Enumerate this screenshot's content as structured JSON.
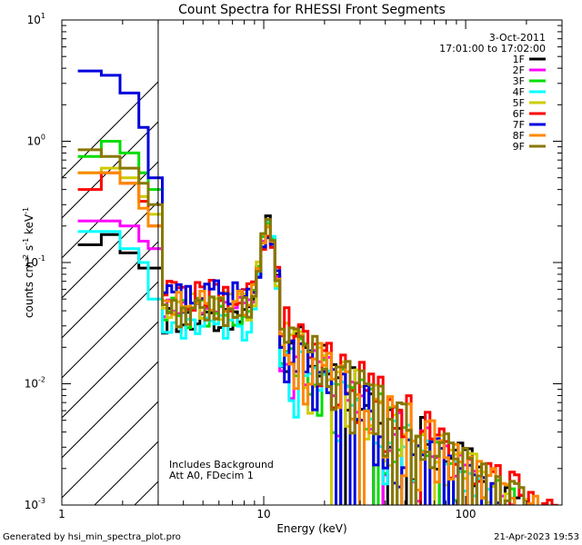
{
  "chart_data": {
    "type": "line",
    "title": "Count Spectra for RHESSI Front Segments",
    "xlabel": "Energy (keV)",
    "ylabel_main": "counts cm",
    "ylabel_exp1": "-2",
    "ylabel_s": " s",
    "ylabel_exp2": "-1",
    "ylabel_kev": " keV",
    "ylabel_exp3": "-1",
    "xscale": "log",
    "yscale": "log",
    "xlim": [
      1,
      300
    ],
    "ylim": [
      0.001,
      10
    ],
    "x_ticks": [
      {
        "value": 1,
        "label": "1"
      },
      {
        "value": 10,
        "label": "10"
      },
      {
        "value": 100,
        "label": "100"
      }
    ],
    "y_ticks": [
      {
        "value": 0.001,
        "base": "10",
        "exp": "-3"
      },
      {
        "value": 0.01,
        "base": "10",
        "exp": "-2"
      },
      {
        "value": 0.1,
        "base": "10",
        "exp": "-1"
      },
      {
        "value": 1,
        "base": "10",
        "exp": "0"
      },
      {
        "value": 10,
        "base": "10",
        "exp": "1"
      }
    ],
    "hatched_region_x": [
      1,
      3
    ],
    "date": "3-Oct-2011",
    "time_range": "17:01:00 to 17:02:00",
    "annotations": [
      "Includes Background",
      "Att A0, FDecim 1"
    ],
    "series": [
      {
        "name": "1F",
        "color": "#000000",
        "low": [
          0.14,
          0.17,
          0.12,
          0.09,
          0.09,
          0.09
        ],
        "cont": 0.035,
        "peak": 0.2,
        "tail": 0.006
      },
      {
        "name": "2F",
        "color": "#ff00ff",
        "low": [
          0.22,
          0.22,
          0.2,
          0.15,
          0.13,
          0.11
        ],
        "cont": 0.045,
        "peak": 0.15,
        "tail": 0.005
      },
      {
        "name": "3F",
        "color": "#00dd00",
        "low": [
          0.75,
          1.0,
          0.8,
          0.55,
          0.4,
          0.3
        ],
        "cont": 0.04,
        "peak": 0.17,
        "tail": 0.005
      },
      {
        "name": "4F",
        "color": "#00ffff",
        "low": [
          0.18,
          0.18,
          0.13,
          0.1,
          0.05,
          0.04
        ],
        "cont": 0.03,
        "peak": 0.19,
        "tail": 0.004
      },
      {
        "name": "5F",
        "color": "#cccc00",
        "low": [
          0.55,
          0.6,
          0.5,
          0.35,
          0.25,
          0.18
        ],
        "cont": 0.045,
        "peak": 0.16,
        "tail": 0.006
      },
      {
        "name": "6F",
        "color": "#ff0000",
        "low": [
          0.4,
          0.55,
          0.45,
          0.32,
          0.2,
          0.16
        ],
        "cont": 0.055,
        "peak": 0.12,
        "tail": 0.007
      },
      {
        "name": "7F",
        "color": "#0000dd",
        "low": [
          3.8,
          3.5,
          2.5,
          1.3,
          0.5,
          0.23
        ],
        "cont": 0.055,
        "peak": 0.12,
        "tail": 0.005
      },
      {
        "name": "8F",
        "color": "#ff8800",
        "low": [
          0.55,
          0.55,
          0.45,
          0.28,
          0.2,
          0.15
        ],
        "cont": 0.045,
        "peak": 0.14,
        "tail": 0.006
      },
      {
        "name": "9F",
        "color": "#887700",
        "low": [
          0.85,
          0.75,
          0.6,
          0.45,
          0.3,
          0.2
        ],
        "cont": 0.04,
        "peak": 0.18,
        "tail": 0.006
      }
    ]
  },
  "footer": {
    "generated_by": "Generated by hsi_min_spectra_plot.pro",
    "timestamp": "21-Apr-2023 19:53"
  }
}
